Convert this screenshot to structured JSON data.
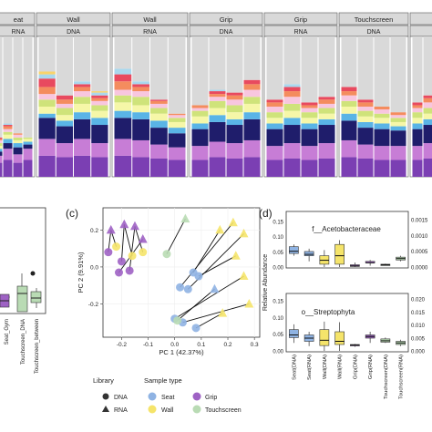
{
  "panel_a": {
    "facets": [
      {
        "top": "eat",
        "sub": "RNA"
      },
      {
        "top": "Wall",
        "sub": "DNA"
      },
      {
        "top": "Wall",
        "sub": "RNA"
      },
      {
        "top": "Grip",
        "sub": "DNA"
      },
      {
        "top": "Grip",
        "sub": "RNA"
      },
      {
        "top": "Touchscreen",
        "sub": "DNA"
      },
      {
        "top": "",
        "sub": ""
      }
    ],
    "palette": [
      "#7b3fb3",
      "#c77dd6",
      "#1f1d6b",
      "#5ab4e6",
      "#f6f7a8",
      "#cfe37a",
      "#f8c6df",
      "#f48c5e",
      "#e84a5f",
      "#a9d8ee",
      "#f9d36b",
      "#b8c9e8"
    ],
    "other_color": "#d9d9d9"
  },
  "panel_b": {
    "xticks": [
      "Seat_Gym",
      "Touchscreen_DNA",
      "Touchscreen_between"
    ]
  },
  "panel_c": {
    "label": "(c)",
    "xlabel": "PC 1 (42.37%)",
    "ylabel": "PC 2 (9.91%)",
    "xticks": [
      "-0.2",
      "-0.1",
      "0.0",
      "0.1",
      "0.2",
      "0.3"
    ],
    "yticks": [
      "0.2",
      "0.0",
      "-0.2"
    ]
  },
  "panel_d": {
    "label": "(d)",
    "ylabel": "Relative Abundance",
    "top_title": "f__Acetobacteraceae",
    "bottom_title": "o__Streptophyta",
    "top_left_ticks": [
      "0.15",
      "0.10",
      "0.05",
      "0.00"
    ],
    "top_right_ticks": [
      "0.0015",
      "0.0010",
      "0.0005",
      "0.0000"
    ],
    "bottom_left_ticks": [
      "0.15",
      "0.10",
      "0.05",
      "0.00"
    ],
    "bottom_right_ticks": [
      "0.020",
      "0.015",
      "0.010",
      "0.005",
      "0.000"
    ],
    "xticks": [
      "Seat(DNA)",
      "Seat(RNA)",
      "Wall(DNA)",
      "Wall(RNA)",
      "Grip(DNA)",
      "Grip(RNA)",
      "Touchscreen(DNA)",
      "Touchscreen(RNA)"
    ]
  },
  "legend": {
    "library_title": "Library",
    "library_items": [
      "DNA",
      "RNA"
    ],
    "sample_title": "Sample type",
    "sample_items": [
      {
        "name": "Seat",
        "color": "#8fb3e3"
      },
      {
        "name": "Grip",
        "color": "#9e62c4"
      },
      {
        "name": "Wall",
        "color": "#f5e46a"
      },
      {
        "name": "Touchscreen",
        "color": "#b9dbb4"
      }
    ]
  },
  "chart_data": [
    {
      "type": "bar",
      "title": "",
      "stacked": true,
      "facets": [
        "eat / RNA",
        "Wall / DNA",
        "Wall / RNA",
        "Grip / DNA",
        "Grip / RNA",
        "Touchscreen / DNA"
      ],
      "note_values": "relative abundance fractions per sample, bottom to top, remainder grey",
      "bars": [
        [
          0.1,
          0.05,
          0.03,
          0.02,
          0.02,
          0.02,
          0.02,
          0.01,
          0.01
        ],
        [
          0.12,
          0.08,
          0.04,
          0.03,
          0.03,
          0.02,
          0.02,
          0.02,
          0.01,
          0.01
        ],
        [
          0.1,
          0.06,
          0.05,
          0.03,
          0.02,
          0.02,
          0.02,
          0.01
        ],
        [
          0.12,
          0.08,
          0.03,
          0.02,
          0.02,
          0.01
        ],
        [
          0.15,
          0.12,
          0.15,
          0.03,
          0.05,
          0.05,
          0.04,
          0.05,
          0.06,
          0.03,
          0.02
        ],
        [
          0.14,
          0.1,
          0.12,
          0.04,
          0.04,
          0.05,
          0.03,
          0.03,
          0.03
        ],
        [
          0.15,
          0.12,
          0.14,
          0.05,
          0.06,
          0.05,
          0.04,
          0.03,
          0.02,
          0.02
        ],
        [
          0.14,
          0.1,
          0.13,
          0.05,
          0.05,
          0.04,
          0.03,
          0.02,
          0.02,
          0.02,
          0.01
        ],
        [
          0.15,
          0.12,
          0.15,
          0.05,
          0.06,
          0.05,
          0.04,
          0.06,
          0.05,
          0.04
        ],
        [
          0.14,
          0.12,
          0.15,
          0.05,
          0.05,
          0.06,
          0.04,
          0.03,
          0.02,
          0.02
        ],
        [
          0.13,
          0.1,
          0.12,
          0.05,
          0.05,
          0.04,
          0.03,
          0.02,
          0.01
        ],
        [
          0.12,
          0.09,
          0.1,
          0.04,
          0.04,
          0.03,
          0.02,
          0.01
        ],
        [
          0.12,
          0.1,
          0.12,
          0.04,
          0.05,
          0.04,
          0.02,
          0.02
        ],
        [
          0.14,
          0.11,
          0.14,
          0.05,
          0.05,
          0.05,
          0.03,
          0.02,
          0.02,
          0.01
        ],
        [
          0.13,
          0.11,
          0.13,
          0.04,
          0.05,
          0.05,
          0.04,
          0.03,
          0.02
        ],
        [
          0.14,
          0.12,
          0.15,
          0.05,
          0.06,
          0.05,
          0.05,
          0.04,
          0.03
        ],
        [
          0.12,
          0.1,
          0.12,
          0.04,
          0.04,
          0.04,
          0.04,
          0.03,
          0.02
        ],
        [
          0.13,
          0.11,
          0.13,
          0.05,
          0.05,
          0.05,
          0.05,
          0.04,
          0.03,
          0.02
        ],
        [
          0.12,
          0.1,
          0.12,
          0.04,
          0.04,
          0.04,
          0.03,
          0.02,
          0.02
        ],
        [
          0.13,
          0.11,
          0.13,
          0.04,
          0.04,
          0.04,
          0.03,
          0.03,
          0.02
        ],
        [
          0.14,
          0.12,
          0.14,
          0.05,
          0.05,
          0.04,
          0.04,
          0.03,
          0.03
        ],
        [
          0.13,
          0.1,
          0.12,
          0.04,
          0.04,
          0.04,
          0.03,
          0.03,
          0.02
        ],
        [
          0.12,
          0.1,
          0.12,
          0.04,
          0.04,
          0.03,
          0.03,
          0.02
        ],
        [
          0.12,
          0.1,
          0.11,
          0.03,
          0.03,
          0.03,
          0.02,
          0.02
        ],
        [
          0.12,
          0.1,
          0.12,
          0.04,
          0.04,
          0.04,
          0.03,
          0.02,
          0.02
        ],
        [
          0.13,
          0.11,
          0.13,
          0.04,
          0.04,
          0.04,
          0.04,
          0.03,
          0.02
        ],
        [
          0.1,
          0.08,
          0.1,
          0.03,
          0.03,
          0.03,
          0.02,
          0.01
        ]
      ]
    },
    {
      "type": "scatter",
      "title": "(c)",
      "xlabel": "PC 1 (42.37%)",
      "ylabel": "PC 2 (9.91%)",
      "xlim": [
        -0.27,
        0.32
      ],
      "ylim": [
        -0.38,
        0.32
      ],
      "points": [
        {
          "x": -0.24,
          "y": 0.2,
          "lib": "RNA",
          "type": "Grip"
        },
        {
          "x": -0.19,
          "y": 0.23,
          "lib": "RNA",
          "type": "Grip"
        },
        {
          "x": -0.15,
          "y": 0.22,
          "lib": "RNA",
          "type": "Grip"
        },
        {
          "x": -0.12,
          "y": 0.15,
          "lib": "RNA",
          "type": "Grip"
        },
        {
          "x": -0.25,
          "y": 0.08,
          "lib": "DNA",
          "type": "Grip"
        },
        {
          "x": -0.21,
          "y": -0.03,
          "lib": "DNA",
          "type": "Grip"
        },
        {
          "x": -0.2,
          "y": 0.03,
          "lib": "DNA",
          "type": "Grip"
        },
        {
          "x": -0.17,
          "y": -0.02,
          "lib": "DNA",
          "type": "Grip"
        },
        {
          "x": -0.22,
          "y": 0.11,
          "lib": "DNA",
          "type": "Wall"
        },
        {
          "x": -0.16,
          "y": 0.06,
          "lib": "DNA",
          "type": "Wall"
        },
        {
          "x": -0.12,
          "y": 0.08,
          "lib": "DNA",
          "type": "Wall"
        },
        {
          "x": 0.04,
          "y": 0.26,
          "lib": "RNA",
          "type": "Touchscreen"
        },
        {
          "x": -0.03,
          "y": 0.07,
          "lib": "DNA",
          "type": "Touchscreen"
        },
        {
          "x": 0.17,
          "y": 0.2,
          "lib": "RNA",
          "type": "Wall"
        },
        {
          "x": 0.22,
          "y": 0.24,
          "lib": "RNA",
          "type": "Wall"
        },
        {
          "x": 0.26,
          "y": 0.18,
          "lib": "RNA",
          "type": "Wall"
        },
        {
          "x": 0.23,
          "y": 0.06,
          "lib": "RNA",
          "type": "Wall"
        },
        {
          "x": 0.26,
          "y": -0.05,
          "lib": "RNA",
          "type": "Wall"
        },
        {
          "x": 0.28,
          "y": -0.2,
          "lib": "RNA",
          "type": "Wall"
        },
        {
          "x": 0.15,
          "y": -0.12,
          "lib": "RNA",
          "type": "Seat"
        },
        {
          "x": 0.18,
          "y": -0.25,
          "lib": "RNA",
          "type": "Wall"
        },
        {
          "x": 0.07,
          "y": -0.03,
          "lib": "DNA",
          "type": "Seat"
        },
        {
          "x": 0.02,
          "y": -0.11,
          "lib": "DNA",
          "type": "Seat"
        },
        {
          "x": 0.05,
          "y": -0.12,
          "lib": "DNA",
          "type": "Seat"
        },
        {
          "x": 0.09,
          "y": -0.05,
          "lib": "DNA",
          "type": "Seat"
        },
        {
          "x": 0.0,
          "y": -0.28,
          "lib": "DNA",
          "type": "Seat"
        },
        {
          "x": 0.03,
          "y": -0.3,
          "lib": "DNA",
          "type": "Seat"
        },
        {
          "x": 0.01,
          "y": -0.29,
          "lib": "DNA",
          "type": "Touchscreen"
        },
        {
          "x": 0.08,
          "y": -0.33,
          "lib": "DNA",
          "type": "Seat"
        }
      ],
      "segments": [
        [
          0,
          4
        ],
        [
          1,
          6
        ],
        [
          2,
          7
        ],
        [
          3,
          5
        ],
        [
          11,
          12
        ],
        [
          13,
          21
        ],
        [
          14,
          22
        ],
        [
          15,
          23
        ],
        [
          16,
          24
        ],
        [
          17,
          25
        ],
        [
          18,
          26
        ],
        [
          19,
          27
        ],
        [
          20,
          28
        ],
        [
          2,
          10
        ],
        [
          1,
          9
        ],
        [
          0,
          8
        ]
      ]
    },
    {
      "type": "box",
      "title": "f__Acetobacteraceae",
      "ylabel": "Relative Abundance",
      "categories": [
        "Seat(DNA)",
        "Seat(RNA)",
        "Wall(DNA)",
        "Wall(RNA)",
        "Grip(DNA)",
        "Grip(RNA)",
        "Touchscreen(DNA)",
        "Touchscreen(RNA)"
      ],
      "axis": [
        "left",
        "right",
        "left",
        "right",
        "left",
        "right",
        "left",
        "right"
      ],
      "colors": [
        "#8fb3e3",
        "#8fb3e3",
        "#f5e46a",
        "#f5e46a",
        "#9e62c4",
        "#9e62c4",
        "#b9dbb4",
        "#b9dbb4"
      ],
      "boxes": [
        {
          "min": 0.02,
          "q1": 0.024,
          "median": 0.028,
          "q3": 0.036,
          "max": 0.04
        },
        {
          "min": 0.0004,
          "q1": 0.0008,
          "median": 0.0009,
          "q3": 0.0011,
          "max": 0.0013
        },
        {
          "min": 0.0,
          "q1": 0.005,
          "median": 0.012,
          "q3": 0.02,
          "max": 0.03
        },
        {
          "min": 0.0,
          "q1": 0.0002,
          "median": 0.0008,
          "q3": 0.0016,
          "max": 0.0019
        },
        {
          "min": 0.0,
          "q1": 0.001,
          "median": 0.002,
          "q3": 0.004,
          "max": 0.008
        },
        {
          "min": 0.0001,
          "q1": 0.0003,
          "median": 0.0003,
          "q3": 0.0004,
          "max": 0.0005
        },
        {
          "min": 0.003,
          "q1": 0.004,
          "median": 0.004,
          "q3": 0.005,
          "max": 0.006
        },
        {
          "min": 0.0004,
          "q1": 0.0005,
          "median": 0.0006,
          "q3": 0.0007,
          "max": 0.0008
        }
      ]
    },
    {
      "type": "box",
      "title": "o__Streptophyta",
      "ylabel": "Relative Abundance",
      "categories": [
        "Seat(DNA)",
        "Seat(RNA)",
        "Wall(DNA)",
        "Wall(RNA)",
        "Grip(DNA)",
        "Grip(RNA)",
        "Touchscreen(DNA)",
        "Touchscreen(RNA)"
      ],
      "axis": [
        "left",
        "right",
        "left",
        "right",
        "left",
        "right",
        "left",
        "right"
      ],
      "colors": [
        "#8fb3e3",
        "#8fb3e3",
        "#f5e46a",
        "#f5e46a",
        "#9e62c4",
        "#9e62c4",
        "#b9dbb4",
        "#b9dbb4"
      ],
      "boxes": [
        {
          "min": 0.03,
          "q1": 0.05,
          "median": 0.06,
          "q3": 0.08,
          "max": 0.1
        },
        {
          "min": 0.0003,
          "q1": 0.0006,
          "median": 0.0008,
          "q3": 0.001,
          "max": 0.0012
        },
        {
          "min": 0.0,
          "q1": 0.02,
          "median": 0.04,
          "q3": 0.08,
          "max": 0.11
        },
        {
          "min": 0.0,
          "q1": 0.0004,
          "median": 0.0006,
          "q3": 0.0012,
          "max": 0.0018
        },
        {
          "min": 0.015,
          "q1": 0.02,
          "median": 0.022,
          "q3": 0.024,
          "max": 0.026
        },
        {
          "min": 0.0005,
          "q1": 0.0008,
          "median": 0.0009,
          "q3": 0.001,
          "max": 0.0012
        },
        {
          "min": 0.03,
          "q1": 0.033,
          "median": 0.038,
          "q3": 0.045,
          "max": 0.05
        },
        {
          "min": 0.0003,
          "q1": 0.0004,
          "median": 0.0005,
          "q3": 0.0006,
          "max": 0.0007
        }
      ]
    }
  ]
}
